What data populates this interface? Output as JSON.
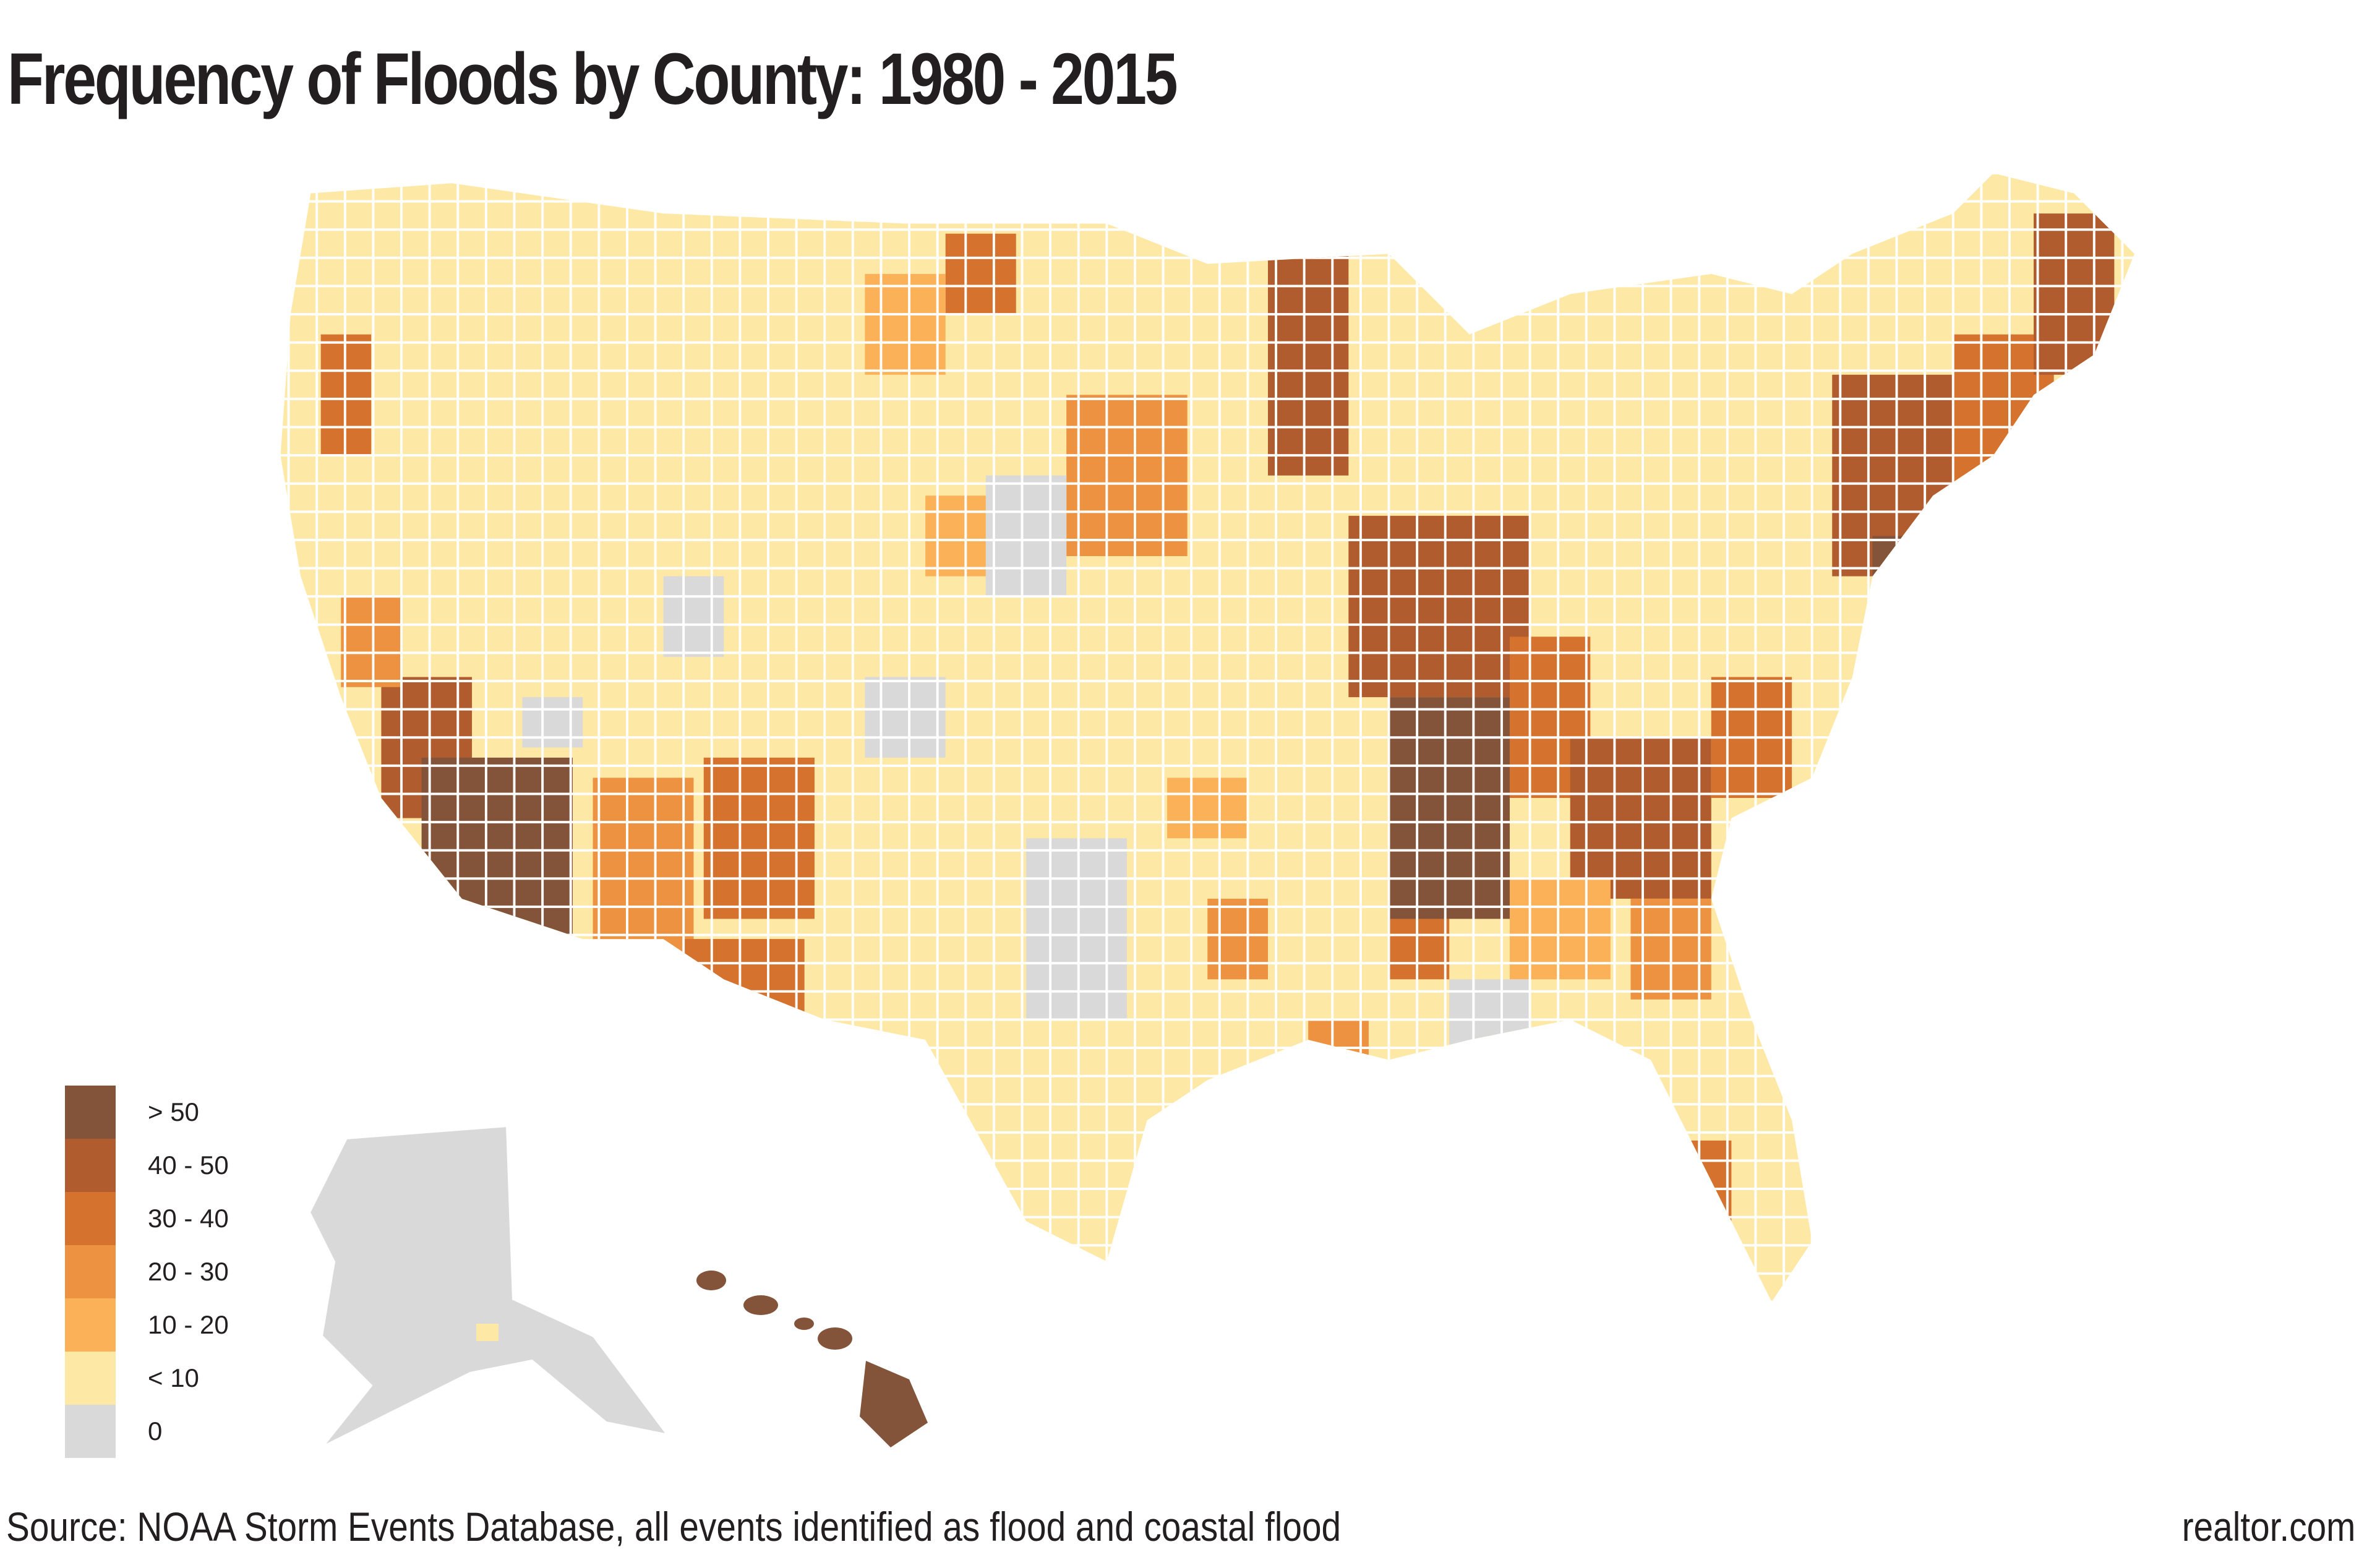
{
  "title": "Frequency of Floods by County: 1980 - 2015",
  "legend": [
    {
      "label": "> 50",
      "color": "#83533a"
    },
    {
      "label": "40 - 50",
      "color": "#b15c2e"
    },
    {
      "label": "30 - 40",
      "color": "#d5722e"
    },
    {
      "label": "20 - 30",
      "color": "#ec9240"
    },
    {
      "label": "10 - 20",
      "color": "#fbb158"
    },
    {
      "label": "< 10",
      "color": "#fde8a6"
    },
    {
      "label": "0",
      "color": "#d9d9d9"
    }
  ],
  "footer": {
    "source": "Source: NOAA Storm Events Database, all events identified as flood and coastal flood",
    "brand": "realtor.com"
  }
}
